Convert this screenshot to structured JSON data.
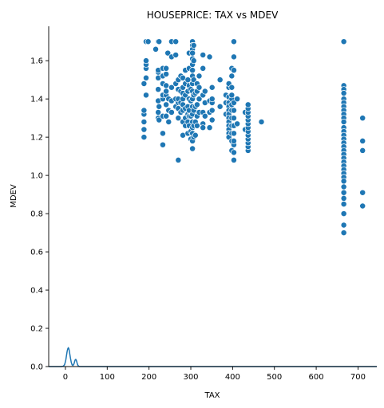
{
  "chart_data": {
    "type": "scatter",
    "title": "HOUSEPRICE: TAX vs MDEV",
    "xlabel": "TAX",
    "ylabel": "MDEV",
    "xlim": [
      -40,
      745
    ],
    "ylim": [
      0.0,
      1.78
    ],
    "xticks": [
      0,
      100,
      200,
      300,
      400,
      500,
      600,
      700
    ],
    "yticks": [
      0.0,
      0.2,
      0.4,
      0.6,
      0.8,
      1.0,
      1.2,
      1.4,
      1.6
    ],
    "grid": false,
    "legend": "none",
    "point_color": "#1f77b4",
    "points": [
      [
        188,
        1.2
      ],
      [
        188,
        1.24
      ],
      [
        188,
        1.28
      ],
      [
        188,
        1.32
      ],
      [
        188,
        1.34
      ],
      [
        188,
        1.48
      ],
      [
        193,
        1.42
      ],
      [
        193,
        1.51
      ],
      [
        193,
        1.56
      ],
      [
        193,
        1.58
      ],
      [
        193,
        1.6
      ],
      [
        193,
        1.7
      ],
      [
        198,
        1.7
      ],
      [
        216,
        1.66
      ],
      [
        222,
        1.3
      ],
      [
        222,
        1.33
      ],
      [
        222,
        1.39
      ],
      [
        222,
        1.45
      ],
      [
        222,
        1.51
      ],
      [
        222,
        1.54
      ],
      [
        222,
        1.55
      ],
      [
        222,
        1.7
      ],
      [
        224,
        1.7
      ],
      [
        224,
        1.36
      ],
      [
        224,
        1.29
      ],
      [
        233,
        1.16
      ],
      [
        233,
        1.22
      ],
      [
        233,
        1.31
      ],
      [
        233,
        1.4
      ],
      [
        233,
        1.42
      ],
      [
        233,
        1.48
      ],
      [
        233,
        1.52
      ],
      [
        233,
        1.56
      ],
      [
        241,
        1.31
      ],
      [
        241,
        1.37
      ],
      [
        241,
        1.42
      ],
      [
        241,
        1.44
      ],
      [
        241,
        1.47
      ],
      [
        241,
        1.53
      ],
      [
        241,
        1.56
      ],
      [
        245,
        1.64
      ],
      [
        247,
        1.4
      ],
      [
        247,
        1.34
      ],
      [
        247,
        1.28
      ],
      [
        254,
        1.7
      ],
      [
        254,
        1.62
      ],
      [
        254,
        1.46
      ],
      [
        254,
        1.39
      ],
      [
        254,
        1.33
      ],
      [
        264,
        1.7
      ],
      [
        264,
        1.63
      ],
      [
        264,
        1.48
      ],
      [
        264,
        1.4
      ],
      [
        264,
        1.36
      ],
      [
        270,
        1.08
      ],
      [
        270,
        1.3
      ],
      [
        270,
        1.35
      ],
      [
        270,
        1.38
      ],
      [
        270,
        1.4
      ],
      [
        270,
        1.45
      ],
      [
        270,
        1.5
      ],
      [
        276,
        1.52
      ],
      [
        276,
        1.44
      ],
      [
        276,
        1.38
      ],
      [
        276,
        1.33
      ],
      [
        281,
        1.21
      ],
      [
        281,
        1.28
      ],
      [
        281,
        1.34
      ],
      [
        281,
        1.37
      ],
      [
        281,
        1.4
      ],
      [
        281,
        1.43
      ],
      [
        281,
        1.46
      ],
      [
        281,
        1.51
      ],
      [
        287,
        1.26
      ],
      [
        287,
        1.3
      ],
      [
        287,
        1.35
      ],
      [
        287,
        1.42
      ],
      [
        287,
        1.48
      ],
      [
        287,
        1.55
      ],
      [
        293,
        1.22
      ],
      [
        293,
        1.28
      ],
      [
        293,
        1.32
      ],
      [
        293,
        1.36
      ],
      [
        293,
        1.44
      ],
      [
        293,
        1.5
      ],
      [
        296,
        1.64
      ],
      [
        296,
        1.56
      ],
      [
        296,
        1.47
      ],
      [
        296,
        1.4
      ],
      [
        296,
        1.34
      ],
      [
        296,
        1.31
      ],
      [
        296,
        1.26
      ],
      [
        300,
        1.19
      ],
      [
        300,
        1.23
      ],
      [
        300,
        1.31
      ],
      [
        300,
        1.39
      ],
      [
        300,
        1.45
      ],
      [
        304,
        1.7
      ],
      [
        304,
        1.68
      ],
      [
        304,
        1.66
      ],
      [
        304,
        1.64
      ],
      [
        304,
        1.61
      ],
      [
        304,
        1.58
      ],
      [
        304,
        1.55
      ],
      [
        304,
        1.52
      ],
      [
        304,
        1.48
      ],
      [
        304,
        1.44
      ],
      [
        304,
        1.4
      ],
      [
        304,
        1.36
      ],
      [
        304,
        1.32
      ],
      [
        304,
        1.28
      ],
      [
        304,
        1.25
      ],
      [
        304,
        1.22
      ],
      [
        304,
        1.18
      ],
      [
        304,
        1.14
      ],
      [
        307,
        1.68
      ],
      [
        307,
        1.6
      ],
      [
        307,
        1.5
      ],
      [
        307,
        1.42
      ],
      [
        307,
        1.34
      ],
      [
        307,
        1.26
      ],
      [
        307,
        1.2
      ],
      [
        311,
        1.21
      ],
      [
        311,
        1.28
      ],
      [
        311,
        1.36
      ],
      [
        311,
        1.43
      ],
      [
        315,
        1.26
      ],
      [
        315,
        1.31
      ],
      [
        315,
        1.37
      ],
      [
        315,
        1.44
      ],
      [
        315,
        1.48
      ],
      [
        320,
        1.33
      ],
      [
        320,
        1.4
      ],
      [
        320,
        1.46
      ],
      [
        320,
        1.52
      ],
      [
        329,
        1.63
      ],
      [
        329,
        1.56
      ],
      [
        329,
        1.42
      ],
      [
        329,
        1.33
      ],
      [
        329,
        1.27
      ],
      [
        329,
        1.25
      ],
      [
        334,
        1.44
      ],
      [
        334,
        1.38
      ],
      [
        334,
        1.31
      ],
      [
        345,
        1.62
      ],
      [
        345,
        1.39
      ],
      [
        345,
        1.33
      ],
      [
        345,
        1.25
      ],
      [
        351,
        1.29
      ],
      [
        351,
        1.34
      ],
      [
        351,
        1.38
      ],
      [
        351,
        1.4
      ],
      [
        351,
        1.46
      ],
      [
        370,
        1.5
      ],
      [
        370,
        1.36
      ],
      [
        384,
        1.32
      ],
      [
        384,
        1.42
      ],
      [
        384,
        1.38
      ],
      [
        391,
        1.41
      ],
      [
        391,
        1.38
      ],
      [
        391,
        1.36
      ],
      [
        391,
        1.34
      ],
      [
        391,
        1.32
      ],
      [
        391,
        1.3
      ],
      [
        391,
        1.28
      ],
      [
        391,
        1.26
      ],
      [
        391,
        1.24
      ],
      [
        391,
        1.22
      ],
      [
        391,
        1.2
      ],
      [
        391,
        1.46
      ],
      [
        391,
        1.48
      ],
      [
        398,
        1.13
      ],
      [
        398,
        1.18
      ],
      [
        398,
        1.22
      ],
      [
        398,
        1.26
      ],
      [
        398,
        1.3
      ],
      [
        398,
        1.34
      ],
      [
        398,
        1.37
      ],
      [
        398,
        1.4
      ],
      [
        398,
        1.42
      ],
      [
        398,
        1.46
      ],
      [
        398,
        1.52
      ],
      [
        398,
        1.56
      ],
      [
        403,
        1.08
      ],
      [
        403,
        1.12
      ],
      [
        403,
        1.16
      ],
      [
        403,
        1.18
      ],
      [
        403,
        1.22
      ],
      [
        403,
        1.26
      ],
      [
        403,
        1.3
      ],
      [
        403,
        1.34
      ],
      [
        403,
        1.38
      ],
      [
        403,
        1.55
      ],
      [
        403,
        1.62
      ],
      [
        403,
        1.7
      ],
      [
        411,
        1.27
      ],
      [
        411,
        1.4
      ],
      [
        430,
        1.33
      ],
      [
        430,
        1.24
      ],
      [
        437,
        1.13
      ],
      [
        437,
        1.15
      ],
      [
        437,
        1.17
      ],
      [
        437,
        1.19
      ],
      [
        437,
        1.21
      ],
      [
        437,
        1.23
      ],
      [
        437,
        1.25
      ],
      [
        437,
        1.27
      ],
      [
        437,
        1.29
      ],
      [
        437,
        1.31
      ],
      [
        437,
        1.33
      ],
      [
        437,
        1.35
      ],
      [
        437,
        1.37
      ],
      [
        469,
        1.28
      ],
      [
        666,
        1.7
      ],
      [
        666,
        1.47
      ],
      [
        666,
        1.45
      ],
      [
        666,
        1.43
      ],
      [
        666,
        1.4
      ],
      [
        666,
        1.38
      ],
      [
        666,
        1.36
      ],
      [
        666,
        1.34
      ],
      [
        666,
        1.32
      ],
      [
        666,
        1.3
      ],
      [
        666,
        1.28
      ],
      [
        666,
        1.25
      ],
      [
        666,
        1.23
      ],
      [
        666,
        1.21
      ],
      [
        666,
        1.19
      ],
      [
        666,
        1.17
      ],
      [
        666,
        1.15
      ],
      [
        666,
        1.13
      ],
      [
        666,
        1.11
      ],
      [
        666,
        1.09
      ],
      [
        666,
        1.07
      ],
      [
        666,
        1.05
      ],
      [
        666,
        1.03
      ],
      [
        666,
        1.01
      ],
      [
        666,
        0.99
      ],
      [
        666,
        0.97
      ],
      [
        666,
        0.94
      ],
      [
        666,
        0.91
      ],
      [
        666,
        0.88
      ],
      [
        666,
        0.85
      ],
      [
        666,
        0.8
      ],
      [
        666,
        0.74
      ],
      [
        666,
        0.7
      ],
      [
        711,
        1.3
      ],
      [
        711,
        1.18
      ],
      [
        711,
        1.13
      ],
      [
        711,
        0.91
      ],
      [
        711,
        0.84
      ]
    ],
    "kde_curve": {
      "x": [
        -40,
        -10,
        -5,
        -2,
        0,
        1,
        2,
        3,
        4,
        5,
        6,
        7,
        8,
        9,
        10,
        12,
        14,
        16,
        18,
        20,
        21,
        22,
        23,
        24,
        25,
        26,
        27,
        28,
        29,
        30,
        32,
        34,
        40,
        745
      ],
      "y": [
        0,
        0,
        0.002,
        0.01,
        0.025,
        0.036,
        0.05,
        0.064,
        0.078,
        0.088,
        0.095,
        0.098,
        0.095,
        0.086,
        0.072,
        0.045,
        0.022,
        0.009,
        0.006,
        0.012,
        0.018,
        0.026,
        0.033,
        0.037,
        0.037,
        0.033,
        0.026,
        0.018,
        0.011,
        0.006,
        0.002,
        0,
        0,
        0
      ]
    }
  }
}
